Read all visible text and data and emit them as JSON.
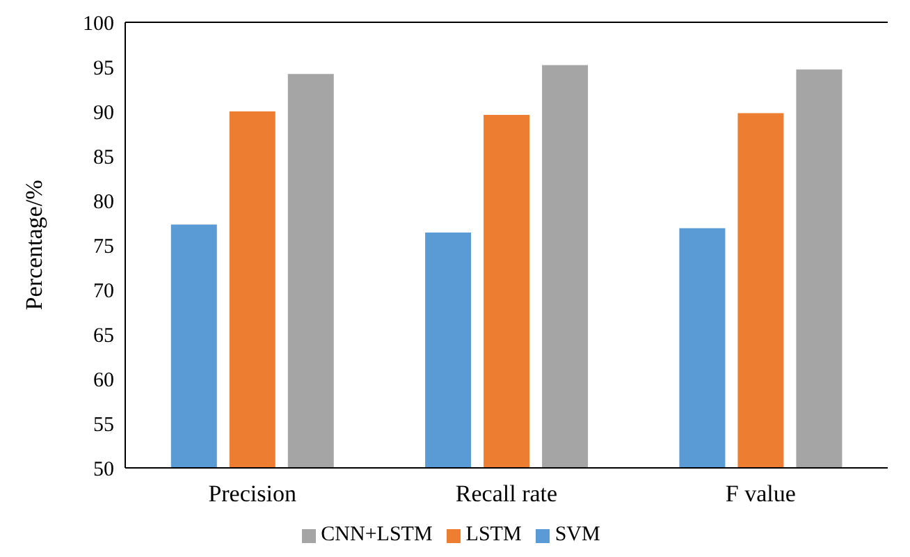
{
  "chart_data": {
    "type": "bar",
    "ylabel": "Percentage/%",
    "categories": [
      "Precision",
      "Recall rate",
      "F value"
    ],
    "series": [
      {
        "name": "SVM",
        "color": "#5b9bd5",
        "values": [
          77.3,
          76.4,
          76.9
        ]
      },
      {
        "name": "LSTM",
        "color": "#ed7d31",
        "values": [
          90.0,
          89.6,
          89.8
        ]
      },
      {
        "name": "CNN+LSTM",
        "color": "#a5a5a5",
        "values": [
          94.2,
          95.2,
          94.7
        ]
      }
    ],
    "ylim": [
      50,
      100
    ],
    "yticks": [
      50,
      55,
      60,
      65,
      70,
      75,
      80,
      85,
      90,
      95,
      100
    ],
    "grid": false,
    "legend": "bottom"
  }
}
